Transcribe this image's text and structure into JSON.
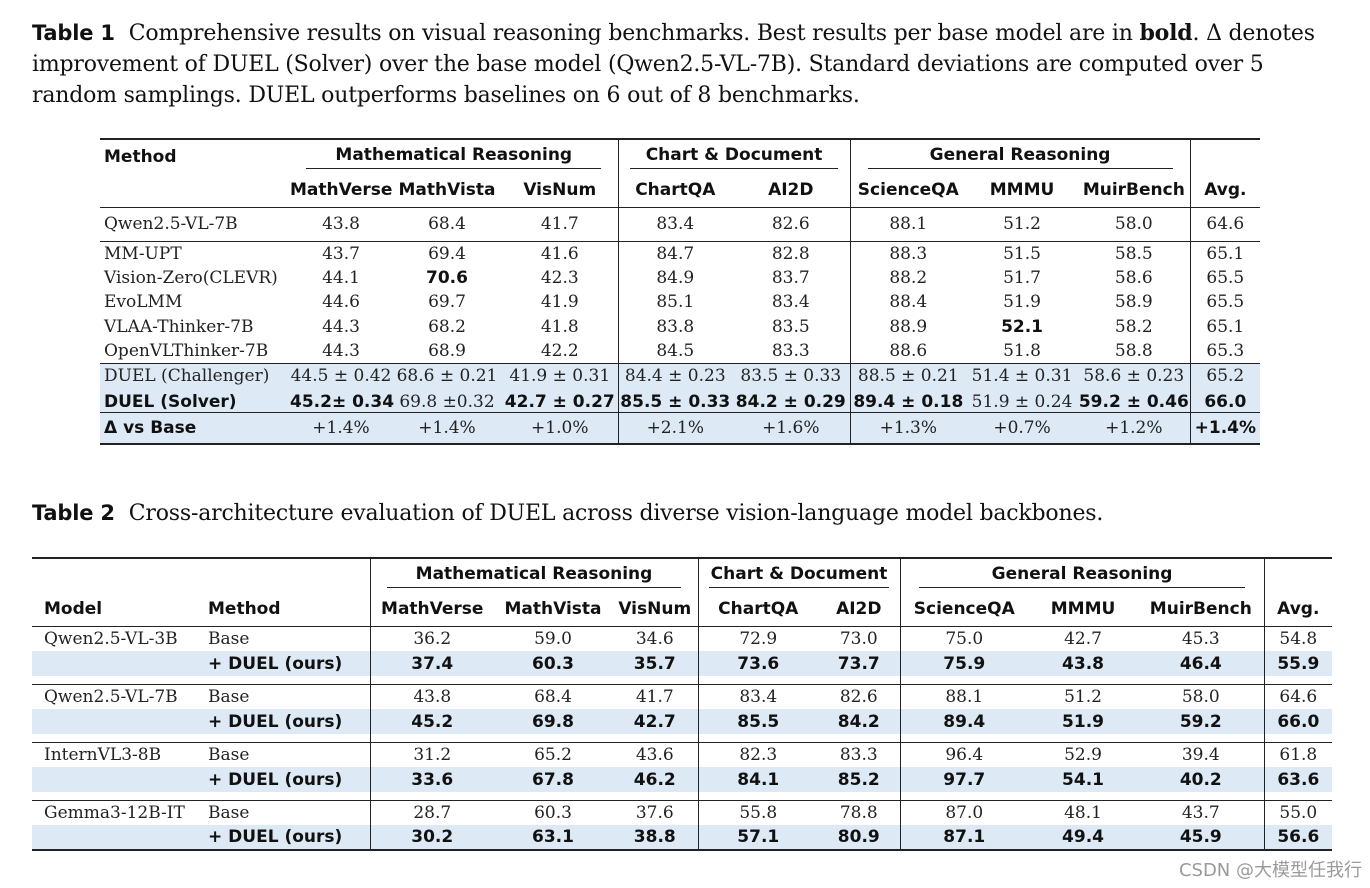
{
  "table1": {
    "caption_label": "Table 1",
    "caption_parts": [
      "Comprehensive results on visual reasoning benchmarks. Best results per base model are in ",
      "bold",
      ". Δ denotes improvement of DUEL (Solver) over the base model (Qwen2.5-VL-7B). Standard deviations are computed over 5 random samplings. DUEL outperforms baselines on 6 out of 8 benchmarks."
    ],
    "header": {
      "method": "Method",
      "groups": [
        "Mathematical Reasoning",
        "Chart & Document",
        "General Reasoning"
      ],
      "columns": [
        "MathVerse",
        "MathVista",
        "VisNum",
        "ChartQA",
        "AI2D",
        "ScienceQA",
        "MMMU",
        "MuirBench",
        "Avg."
      ]
    },
    "base_row": {
      "method": "Qwen2.5-VL-7B",
      "values": [
        "43.8",
        "68.4",
        "41.7",
        "83.4",
        "82.6",
        "88.1",
        "51.2",
        "58.0",
        "64.6"
      ]
    },
    "baselines": [
      {
        "method": "MM-UPT",
        "values": [
          "43.7",
          "69.4",
          "41.6",
          "84.7",
          "82.8",
          "88.3",
          "51.5",
          "58.5",
          "65.1"
        ]
      },
      {
        "method": "Vision-Zero(CLEVR)",
        "values": [
          "44.1",
          "70.6",
          "42.3",
          "84.9",
          "83.7",
          "88.2",
          "51.7",
          "58.6",
          "65.5"
        ]
      },
      {
        "method": "EvoLMM",
        "values": [
          "44.6",
          "69.7",
          "41.9",
          "85.1",
          "83.4",
          "88.4",
          "51.9",
          "58.9",
          "65.5"
        ]
      },
      {
        "method": "VLAA-Thinker-7B",
        "values": [
          "44.3",
          "68.2",
          "41.8",
          "83.8",
          "83.5",
          "88.9",
          "52.1",
          "58.2",
          "65.1"
        ]
      },
      {
        "method": "OpenVLThinker-7B",
        "values": [
          "44.3",
          "68.9",
          "42.2",
          "84.5",
          "83.3",
          "88.6",
          "51.8",
          "58.8",
          "65.3"
        ]
      }
    ],
    "challenger": {
      "method": "DUEL (Challenger)",
      "values": [
        "44.5 ± 0.42",
        "68.6 ± 0.21",
        "41.9 ± 0.31",
        "84.4 ± 0.23",
        "83.5 ± 0.33",
        "88.5 ± 0.21",
        "51.4 ± 0.31",
        "58.6 ± 0.23",
        "65.2"
      ]
    },
    "solver": {
      "method": "DUEL (Solver)",
      "values": [
        "45.2± 0.34",
        "69.8 ±0.32",
        "42.7 ± 0.27",
        "85.5 ± 0.33",
        "84.2 ± 0.29",
        "89.4 ± 0.18",
        "51.9 ± 0.24",
        "59.2 ± 0.46",
        "66.0"
      ]
    },
    "delta": {
      "method": "Δ vs Base",
      "values": [
        "+1.4%",
        "+1.4%",
        "+1.0%",
        "+2.1%",
        "+1.6%",
        "+1.3%",
        "+0.7%",
        "+1.2%",
        "+1.4%"
      ]
    }
  },
  "table2": {
    "caption_label": "Table 2",
    "caption_text": "Cross-architecture evaluation of DUEL across diverse vision-language model backbones.",
    "header": {
      "model": "Model",
      "method": "Method",
      "groups": [
        "Mathematical Reasoning",
        "Chart & Document",
        "General Reasoning"
      ],
      "columns": [
        "MathVerse",
        "MathVista",
        "VisNum",
        "ChartQA",
        "AI2D",
        "ScienceQA",
        "MMMU",
        "MuirBench",
        "Avg."
      ]
    },
    "blocks": [
      {
        "model": "Qwen2.5-VL-3B",
        "base_label": "Base",
        "duel_label": "+ DUEL (ours)",
        "base": [
          "36.2",
          "59.0",
          "34.6",
          "72.9",
          "73.0",
          "75.0",
          "42.7",
          "45.3",
          "54.8"
        ],
        "duel": [
          "37.4",
          "60.3",
          "35.7",
          "73.6",
          "73.7",
          "75.9",
          "43.8",
          "46.4",
          "55.9"
        ]
      },
      {
        "model": "Qwen2.5-VL-7B",
        "base_label": "Base",
        "duel_label": "+ DUEL (ours)",
        "base": [
          "43.8",
          "68.4",
          "41.7",
          "83.4",
          "82.6",
          "88.1",
          "51.2",
          "58.0",
          "64.6"
        ],
        "duel": [
          "45.2",
          "69.8",
          "42.7",
          "85.5",
          "84.2",
          "89.4",
          "51.9",
          "59.2",
          "66.0"
        ]
      },
      {
        "model": "InternVL3-8B",
        "base_label": "Base",
        "duel_label": "+ DUEL (ours)",
        "base": [
          "31.2",
          "65.2",
          "43.6",
          "82.3",
          "83.3",
          "96.4",
          "52.9",
          "39.4",
          "61.8"
        ],
        "duel": [
          "33.6",
          "67.8",
          "46.2",
          "84.1",
          "85.2",
          "97.7",
          "54.1",
          "40.2",
          "63.6"
        ]
      },
      {
        "model": "Gemma3-12B-IT",
        "base_label": "Base",
        "duel_label": "+ DUEL (ours)",
        "base": [
          "28.7",
          "60.3",
          "37.6",
          "55.8",
          "78.8",
          "87.0",
          "48.1",
          "43.7",
          "55.0"
        ],
        "duel": [
          "30.2",
          "63.1",
          "38.8",
          "57.1",
          "80.9",
          "87.1",
          "49.4",
          "45.9",
          "56.6"
        ]
      }
    ]
  },
  "watermark": "CSDN @大模型任我行"
}
